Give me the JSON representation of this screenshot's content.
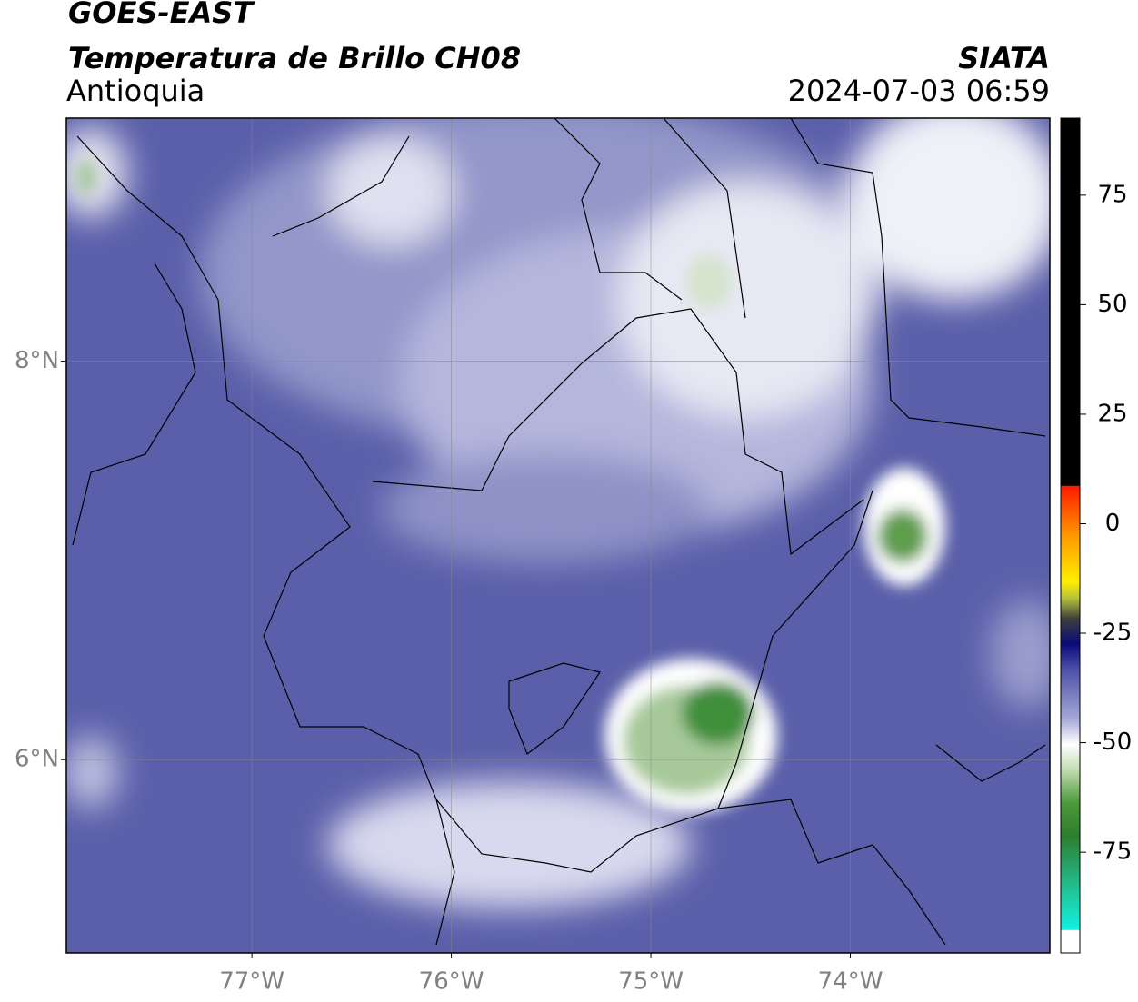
{
  "header": {
    "title": "GOES-EAST",
    "subtitle": "Temperatura de Brillo CH08",
    "region": "Antioquia",
    "source": "SIATA",
    "timestamp": "2024-07-03 06:59"
  },
  "map": {
    "xlim": [
      -77.93,
      -73.0
    ],
    "ylim": [
      5.03,
      9.22
    ],
    "grid": true,
    "xticks": [
      {
        "value": -77,
        "label": "77°W"
      },
      {
        "value": -76,
        "label": "76°W"
      },
      {
        "value": -75,
        "label": "75°W"
      },
      {
        "value": -74,
        "label": "74°W"
      }
    ],
    "yticks": [
      {
        "value": 6,
        "label": "6°N"
      },
      {
        "value": 8,
        "label": "8°N"
      }
    ]
  },
  "colorbar": {
    "lim": [
      -98,
      92.6
    ],
    "ticks": [
      -75,
      -50,
      -25,
      0,
      25,
      50,
      75
    ]
  }
}
